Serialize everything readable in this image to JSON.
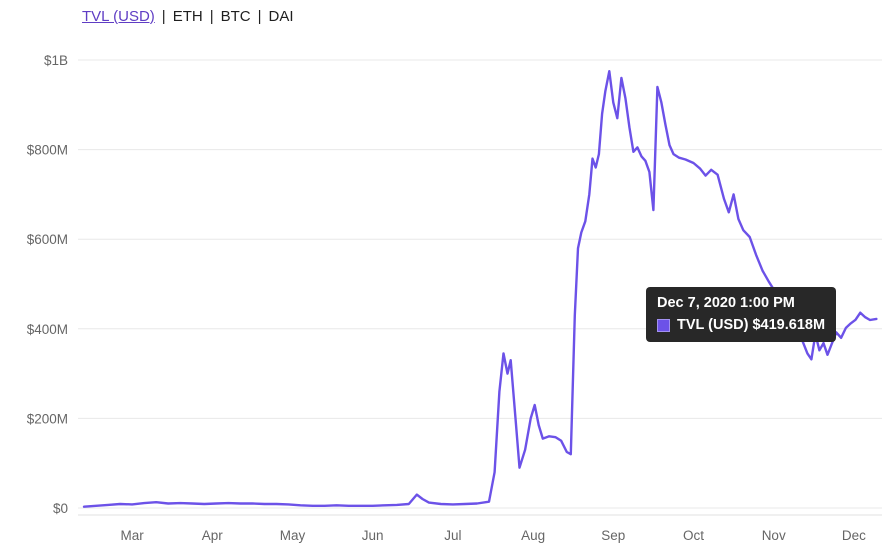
{
  "header": {
    "tabs": [
      {
        "label": "TVL (USD)",
        "active": true
      },
      {
        "label": "ETH",
        "active": false
      },
      {
        "label": "BTC",
        "active": false
      },
      {
        "label": "DAI",
        "active": false
      }
    ],
    "separator": "|"
  },
  "tooltip": {
    "title": "Dec 7, 2020 1:00 PM",
    "series_label": "TVL (USD)",
    "value": "$419.618M"
  },
  "colors": {
    "line": "#6c52e8",
    "swatch_border": "#a291f0",
    "active_link": "#5f3dc4",
    "axis_text": "#666666",
    "grid": "#e8e8e8",
    "axis_border": "#e0e0e0",
    "tab_text": "#1f1f1f",
    "tooltip_bg": "#282828"
  },
  "chart_data": {
    "type": "line",
    "title": "",
    "legend_position": "tooltip-only",
    "grid": "horizontal",
    "series_name": "TVL (USD)",
    "x_axis": {
      "unit": "month of 2020 (decimal, 3 = Mar 1)",
      "range": [
        2.35,
        12.35
      ],
      "ticks": [
        {
          "v": 3,
          "label": "Mar"
        },
        {
          "v": 4,
          "label": "Apr"
        },
        {
          "v": 5,
          "label": "May"
        },
        {
          "v": 6,
          "label": "Jun"
        },
        {
          "v": 7,
          "label": "Jul"
        },
        {
          "v": 8,
          "label": "Aug"
        },
        {
          "v": 9,
          "label": "Sep"
        },
        {
          "v": 10,
          "label": "Oct"
        },
        {
          "v": 11,
          "label": "Nov"
        },
        {
          "v": 12,
          "label": "Dec"
        }
      ]
    },
    "y_axis": {
      "unit": "USD millions",
      "range": [
        0,
        1000
      ],
      "ticks": [
        {
          "v": 0,
          "label": "$0"
        },
        {
          "v": 200,
          "label": "$200M"
        },
        {
          "v": 400,
          "label": "$400M"
        },
        {
          "v": 600,
          "label": "$600M"
        },
        {
          "v": 800,
          "label": "$800M"
        },
        {
          "v": 1000,
          "label": "$1B"
        }
      ]
    },
    "highlighted_point": {
      "x": 12.2,
      "value": 419.618,
      "label": "Dec 7, 2020 1:00 PM"
    },
    "points": [
      [
        2.4,
        3
      ],
      [
        2.55,
        5
      ],
      [
        2.7,
        7
      ],
      [
        2.85,
        9
      ],
      [
        3.0,
        8
      ],
      [
        3.15,
        11
      ],
      [
        3.3,
        13
      ],
      [
        3.45,
        10
      ],
      [
        3.6,
        11
      ],
      [
        3.75,
        10
      ],
      [
        3.9,
        9
      ],
      [
        4.05,
        10
      ],
      [
        4.2,
        11
      ],
      [
        4.35,
        10
      ],
      [
        4.5,
        10
      ],
      [
        4.65,
        9
      ],
      [
        4.8,
        9
      ],
      [
        4.95,
        8
      ],
      [
        5.1,
        6
      ],
      [
        5.25,
        5
      ],
      [
        5.4,
        5
      ],
      [
        5.55,
        6
      ],
      [
        5.7,
        5
      ],
      [
        5.85,
        5
      ],
      [
        6.0,
        5
      ],
      [
        6.15,
        6
      ],
      [
        6.3,
        7
      ],
      [
        6.45,
        9
      ],
      [
        6.55,
        30
      ],
      [
        6.62,
        20
      ],
      [
        6.7,
        12
      ],
      [
        6.85,
        9
      ],
      [
        7.0,
        8
      ],
      [
        7.15,
        9
      ],
      [
        7.3,
        10
      ],
      [
        7.45,
        14
      ],
      [
        7.52,
        80
      ],
      [
        7.58,
        260
      ],
      [
        7.63,
        345
      ],
      [
        7.68,
        300
      ],
      [
        7.72,
        330
      ],
      [
        7.78,
        200
      ],
      [
        7.83,
        90
      ],
      [
        7.9,
        130
      ],
      [
        7.97,
        200
      ],
      [
        8.02,
        230
      ],
      [
        8.07,
        185
      ],
      [
        8.12,
        155
      ],
      [
        8.2,
        160
      ],
      [
        8.28,
        158
      ],
      [
        8.35,
        150
      ],
      [
        8.42,
        125
      ],
      [
        8.47,
        120
      ],
      [
        8.52,
        430
      ],
      [
        8.56,
        580
      ],
      [
        8.6,
        615
      ],
      [
        8.65,
        640
      ],
      [
        8.7,
        700
      ],
      [
        8.74,
        780
      ],
      [
        8.78,
        760
      ],
      [
        8.82,
        790
      ],
      [
        8.86,
        880
      ],
      [
        8.9,
        930
      ],
      [
        8.95,
        975
      ],
      [
        9.0,
        905
      ],
      [
        9.05,
        870
      ],
      [
        9.1,
        960
      ],
      [
        9.15,
        915
      ],
      [
        9.2,
        850
      ],
      [
        9.25,
        795
      ],
      [
        9.3,
        805
      ],
      [
        9.35,
        785
      ],
      [
        9.4,
        775
      ],
      [
        9.45,
        750
      ],
      [
        9.5,
        665
      ],
      [
        9.55,
        940
      ],
      [
        9.6,
        905
      ],
      [
        9.65,
        855
      ],
      [
        9.7,
        810
      ],
      [
        9.75,
        790
      ],
      [
        9.82,
        782
      ],
      [
        9.9,
        778
      ],
      [
        10.0,
        770
      ],
      [
        10.08,
        758
      ],
      [
        10.15,
        742
      ],
      [
        10.22,
        755
      ],
      [
        10.3,
        744
      ],
      [
        10.38,
        690
      ],
      [
        10.44,
        660
      ],
      [
        10.5,
        700
      ],
      [
        10.56,
        645
      ],
      [
        10.62,
        620
      ],
      [
        10.7,
        605
      ],
      [
        10.78,
        565
      ],
      [
        10.86,
        530
      ],
      [
        10.94,
        505
      ],
      [
        11.0,
        488
      ],
      [
        11.06,
        462
      ],
      [
        11.12,
        445
      ],
      [
        11.18,
        452
      ],
      [
        11.24,
        420
      ],
      [
        11.3,
        412
      ],
      [
        11.36,
        372
      ],
      [
        11.42,
        345
      ],
      [
        11.47,
        332
      ],
      [
        11.52,
        388
      ],
      [
        11.57,
        352
      ],
      [
        11.62,
        368
      ],
      [
        11.67,
        342
      ],
      [
        11.72,
        365
      ],
      [
        11.78,
        392
      ],
      [
        11.84,
        380
      ],
      [
        11.9,
        402
      ],
      [
        11.96,
        412
      ],
      [
        12.02,
        420
      ],
      [
        12.08,
        436
      ],
      [
        12.14,
        426
      ],
      [
        12.2,
        419.618
      ],
      [
        12.28,
        422
      ]
    ]
  }
}
